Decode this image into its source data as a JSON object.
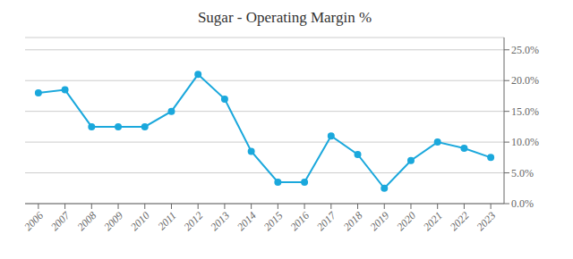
{
  "chart_data": {
    "type": "line",
    "title": "Sugar - Operating Margin %",
    "x": [
      2006,
      2007,
      2008,
      2009,
      2010,
      2011,
      2012,
      2013,
      2014,
      2015,
      2016,
      2017,
      2018,
      2019,
      2020,
      2021,
      2022,
      2023
    ],
    "values": [
      18.0,
      18.5,
      12.5,
      12.5,
      12.5,
      15.0,
      21.0,
      17.0,
      8.5,
      3.5,
      3.5,
      11.0,
      8.0,
      2.5,
      7.0,
      10.0,
      9.0,
      7.5
    ],
    "color": "#1BA8DC",
    "marker": "circle",
    "xlim": [
      2005.5,
      2023.5
    ],
    "xticks": [
      2006,
      2007,
      2008,
      2009,
      2010,
      2011,
      2012,
      2013,
      2014,
      2015,
      2016,
      2017,
      2018,
      2019,
      2020,
      2021,
      2022,
      2023
    ],
    "ylim": [
      0,
      27
    ],
    "yticks": [
      {
        "value": 0,
        "label": "0.0%"
      },
      {
        "value": 5,
        "label": "5.0%"
      },
      {
        "value": 10,
        "label": "10.0%"
      },
      {
        "value": 15,
        "label": "15.0%"
      },
      {
        "value": 20,
        "label": "20.0%"
      },
      {
        "value": 25,
        "label": "25.0%"
      }
    ],
    "grid": "y"
  }
}
